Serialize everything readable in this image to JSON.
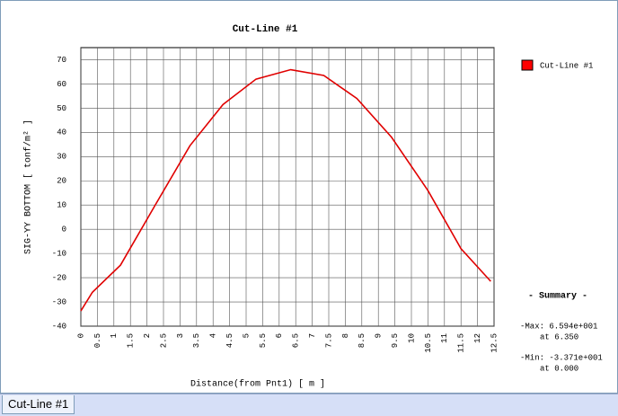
{
  "chart_data": {
    "type": "line",
    "title": "Cut-Line #1",
    "x_label": "Distance(from Pnt1) [ m ]",
    "y_label": "SIG-YY BOTTOM [ tonf/m² ]",
    "x": [
      0,
      0.35,
      1.2,
      2.25,
      3.3,
      4.3,
      5.3,
      6.35,
      7.35,
      8.35,
      9.4,
      10.5,
      11.5,
      12.4
    ],
    "series": [
      {
        "name": "Cut-Line #1",
        "color": "#e00000",
        "values": [
          -33.7,
          -26,
          -14.8,
          10,
          34.5,
          51.5,
          62,
          65.9,
          63.5,
          54,
          38,
          16,
          -8,
          -21.5
        ]
      }
    ],
    "xlim": [
      0,
      12.5
    ],
    "xticks": [
      0,
      0.5,
      1,
      1.5,
      2,
      2.5,
      3,
      3.5,
      4,
      4.5,
      5,
      5.5,
      6,
      6.5,
      7,
      7.5,
      8,
      8.5,
      9,
      9.5,
      10,
      10.5,
      11,
      11.5,
      12,
      12.5
    ],
    "ylim": [
      -40,
      75
    ],
    "yticks": [
      -40,
      -30,
      -20,
      -10,
      0,
      10,
      20,
      30,
      40,
      50,
      60,
      70
    ],
    "grid": true,
    "summary": {
      "title": "- Summary -",
      "max": "-Max: 6.594e+001",
      "max_at": "at  6.350",
      "min": "-Min: -3.371e+001",
      "min_at": "at  0.000"
    }
  },
  "tabs": [
    "Cut-Line #1"
  ]
}
